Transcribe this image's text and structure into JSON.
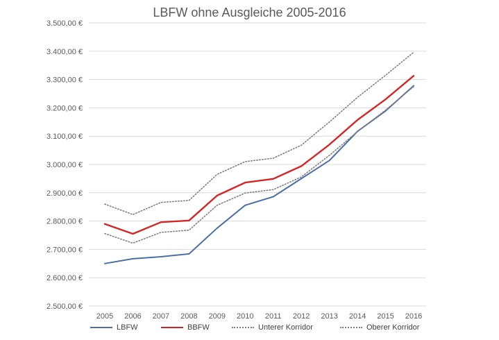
{
  "chart_data": {
    "type": "line",
    "title": "LBFW ohne Ausgleiche 2005-2016",
    "xlabel": "",
    "ylabel": "",
    "categories": [
      "2005",
      "2006",
      "2007",
      "2008",
      "2009",
      "2010",
      "2011",
      "2012",
      "2013",
      "2014",
      "2015",
      "2016"
    ],
    "ylim": [
      2500,
      3500
    ],
    "yticks": [
      2500,
      2600,
      2700,
      2800,
      2900,
      3000,
      3100,
      3200,
      3300,
      3400,
      3500
    ],
    "ytick_labels": [
      "2.500,00 €",
      "2.600,00 €",
      "2.700,00 €",
      "2.800,00 €",
      "2.900,00 €",
      "3.000,00 €",
      "3.100,00 €",
      "3.200,00 €",
      "3.300,00 €",
      "3.400,00 €",
      "3.500,00 €"
    ],
    "grid": true,
    "legend_position": "bottom",
    "series": [
      {
        "name": "LBFW",
        "color": "#4a6ea8",
        "style": "solid",
        "values": [
          2650,
          2667,
          2674,
          2684,
          2775,
          2856,
          2886,
          2950,
          3014,
          3117,
          3189,
          3278
        ]
      },
      {
        "name": "BBFW",
        "color": "#d42424",
        "style": "solid",
        "values": [
          2790,
          2755,
          2796,
          2802,
          2890,
          2936,
          2949,
          2994,
          3070,
          3157,
          3230,
          3313
        ]
      },
      {
        "name": "Unterer Korridor",
        "color": "#7f7f7f",
        "style": "dotted",
        "values": [
          2756,
          2722,
          2760,
          2768,
          2856,
          2899,
          2911,
          2956,
          3032,
          3116,
          3192,
          3275
        ]
      },
      {
        "name": "Oberer Korridor",
        "color": "#7f7f7f",
        "style": "dotted",
        "values": [
          2860,
          2823,
          2866,
          2873,
          2965,
          3010,
          3022,
          3068,
          3150,
          3237,
          3315,
          3396
        ]
      }
    ]
  }
}
